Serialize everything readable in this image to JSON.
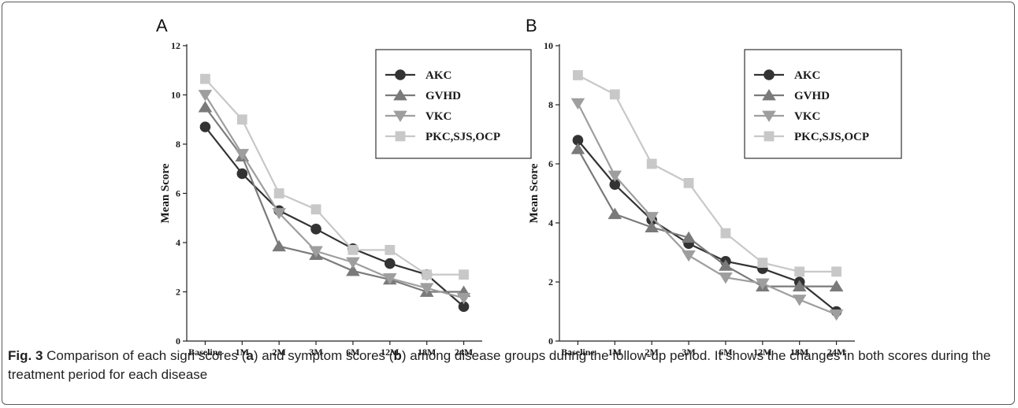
{
  "colors": {
    "AKC": "#333333",
    "GVHD": "#7a7a7a",
    "VKC": "#9e9e9e",
    "PKC,SJS,OCP": "#c8c8c8"
  },
  "chart_data": [
    {
      "type": "line",
      "panel": "A",
      "title": "",
      "xlabel": "",
      "ylabel": "Mean Score",
      "ylim": [
        0,
        12
      ],
      "yticks": [
        0,
        2,
        4,
        6,
        8,
        10,
        12
      ],
      "categories": [
        "Baseline",
        "1M",
        "2M",
        "3M",
        "6M",
        "12M",
        "18M",
        "24M"
      ],
      "grid": false,
      "legend_position": "top-right",
      "series": [
        {
          "name": "AKC",
          "marker": "circle",
          "values": [
            8.7,
            6.8,
            5.3,
            4.55,
            3.75,
            3.15,
            2.7,
            1.4
          ]
        },
        {
          "name": "GVHD",
          "marker": "triangle-up",
          "values": [
            9.5,
            7.5,
            3.85,
            3.5,
            2.85,
            2.5,
            2.0,
            2.0
          ]
        },
        {
          "name": "VKC",
          "marker": "triangle-down",
          "values": [
            10.0,
            7.6,
            5.2,
            3.65,
            3.2,
            2.55,
            2.15,
            1.75
          ]
        },
        {
          "name": "PKC,SJS,OCP",
          "marker": "square",
          "values": [
            10.65,
            9.0,
            6.0,
            5.35,
            3.7,
            3.7,
            2.7,
            2.7
          ]
        }
      ]
    },
    {
      "type": "line",
      "panel": "B",
      "title": "",
      "xlabel": "",
      "ylabel": "Mean Score",
      "ylim": [
        0,
        10
      ],
      "yticks": [
        0,
        2,
        4,
        6,
        8,
        10
      ],
      "categories": [
        "Baseline",
        "1M",
        "2M",
        "3M",
        "6M",
        "12M",
        "18M",
        "24M"
      ],
      "grid": false,
      "legend_position": "top-right",
      "series": [
        {
          "name": "AKC",
          "marker": "circle",
          "values": [
            6.8,
            5.3,
            4.1,
            3.3,
            2.7,
            2.45,
            2.0,
            1.0
          ]
        },
        {
          "name": "GVHD",
          "marker": "triangle-up",
          "values": [
            6.5,
            4.3,
            3.85,
            3.5,
            2.55,
            1.85,
            1.85,
            1.85
          ]
        },
        {
          "name": "VKC",
          "marker": "triangle-down",
          "values": [
            8.05,
            5.6,
            4.2,
            2.9,
            2.15,
            1.95,
            1.4,
            0.9
          ]
        },
        {
          "name": "PKC,SJS,OCP",
          "marker": "square",
          "values": [
            9.0,
            8.35,
            6.0,
            5.35,
            3.65,
            2.65,
            2.35,
            2.35
          ]
        }
      ]
    }
  ],
  "caption": {
    "fig_label": "Fig. 3",
    "part1": " Comparison of each sign scores (",
    "a": "a",
    "part2": ") and symptom scores (",
    "b": "b",
    "part3": ") among disease groups during the follow-up period. It shows the changes in both scores during the treatment period for each disease"
  }
}
